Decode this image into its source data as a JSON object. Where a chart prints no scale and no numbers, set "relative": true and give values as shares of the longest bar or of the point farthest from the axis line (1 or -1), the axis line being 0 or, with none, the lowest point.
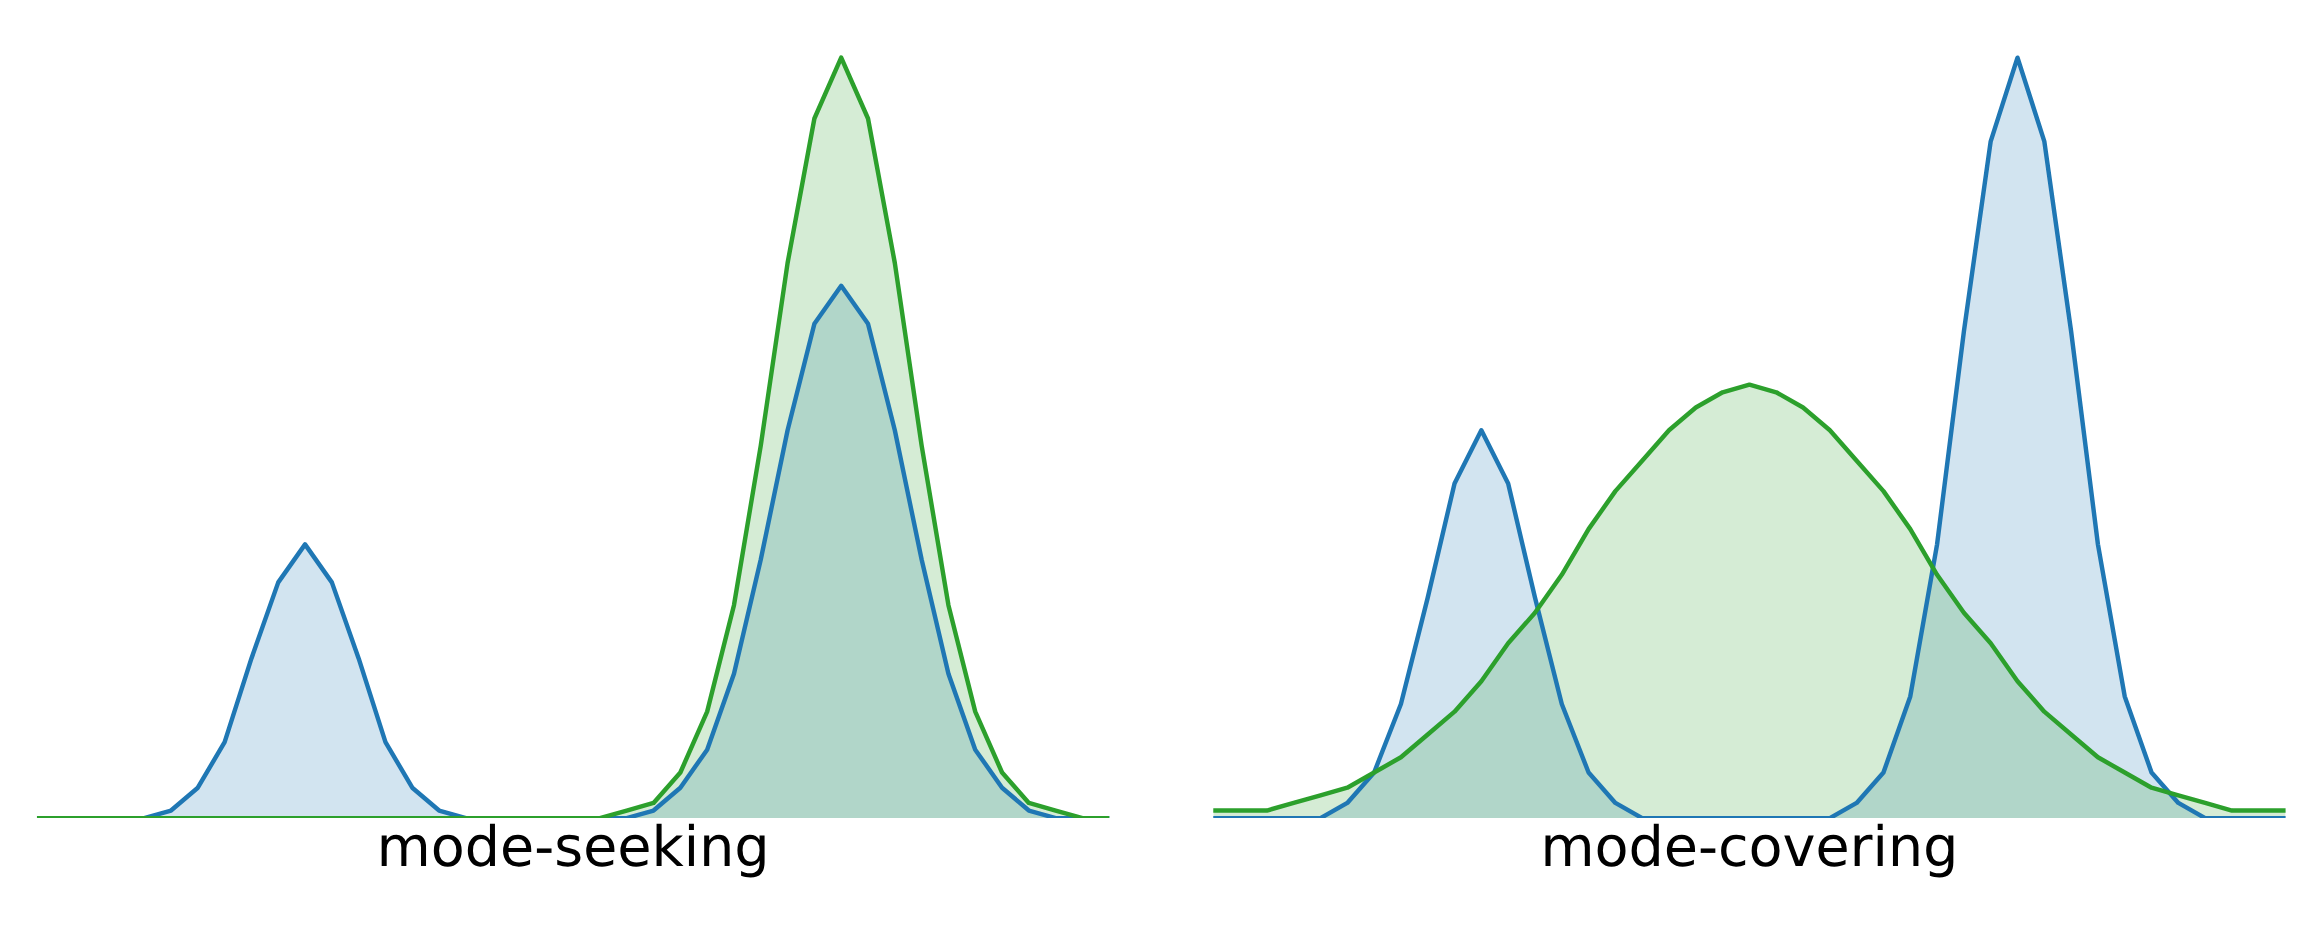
{
  "chart_data": [
    {
      "type": "area",
      "relative": true,
      "xlabel": "mode-seeking",
      "tick_labels": false,
      "grid": false,
      "legend": false,
      "categories": [
        null,
        null,
        null,
        null,
        null,
        null,
        null,
        null,
        null,
        null,
        null,
        null,
        null,
        null,
        null,
        null,
        null,
        null,
        null,
        null,
        null,
        null,
        null,
        null,
        null,
        null,
        null,
        null,
        null,
        null,
        null,
        null,
        null,
        null,
        null,
        null,
        null,
        null,
        null,
        null,
        null
      ],
      "series": [
        {
          "color": "#1f77b4",
          "values": [
            0,
            0,
            0,
            0,
            0,
            0.01,
            0.04,
            0.1,
            0.21,
            0.31,
            0.36,
            0.31,
            0.21,
            0.1,
            0.04,
            0.01,
            0,
            0,
            0,
            0,
            0,
            0,
            0,
            0.01,
            0.04,
            0.09,
            0.19,
            0.34,
            0.51,
            0.65,
            0.7,
            0.65,
            0.51,
            0.34,
            0.19,
            0.09,
            0.04,
            0.01,
            0,
            0,
            0
          ]
        },
        {
          "color": "#2ca02c",
          "values": [
            0,
            0,
            0,
            0,
            0,
            0,
            0,
            0,
            0,
            0,
            0,
            0,
            0,
            0,
            0,
            0,
            0,
            0,
            0,
            0,
            0,
            0,
            0.01,
            0.02,
            0.06,
            0.14,
            0.28,
            0.49,
            0.73,
            0.92,
            1,
            0.92,
            0.73,
            0.49,
            0.28,
            0.14,
            0.06,
            0.02,
            0.01,
            0,
            0
          ]
        }
      ]
    },
    {
      "type": "area",
      "relative": true,
      "xlabel": "mode-covering",
      "tick_labels": false,
      "grid": false,
      "legend": false,
      "categories": [
        null,
        null,
        null,
        null,
        null,
        null,
        null,
        null,
        null,
        null,
        null,
        null,
        null,
        null,
        null,
        null,
        null,
        null,
        null,
        null,
        null,
        null,
        null,
        null,
        null,
        null,
        null,
        null,
        null,
        null,
        null,
        null,
        null,
        null,
        null,
        null,
        null,
        null,
        null,
        null,
        null
      ],
      "series": [
        {
          "color": "#1f77b4",
          "values": [
            0,
            0,
            0,
            0,
            0,
            0.02,
            0.06,
            0.15,
            0.29,
            0.44,
            0.51,
            0.44,
            0.29,
            0.15,
            0.06,
            0.02,
            0,
            0,
            0,
            0,
            0,
            0,
            0,
            0,
            0.02,
            0.06,
            0.16,
            0.36,
            0.64,
            0.89,
            1,
            0.89,
            0.64,
            0.36,
            0.16,
            0.06,
            0.02,
            0,
            0,
            0,
            0
          ]
        },
        {
          "color": "#2ca02c",
          "values": [
            0.01,
            0.01,
            0.01,
            0.02,
            0.03,
            0.04,
            0.06,
            0.08,
            0.11,
            0.14,
            0.18,
            0.23,
            0.27,
            0.32,
            0.38,
            0.43,
            0.47,
            0.51,
            0.54,
            0.56,
            0.57,
            0.56,
            0.54,
            0.51,
            0.47,
            0.43,
            0.38,
            0.32,
            0.27,
            0.23,
            0.18,
            0.14,
            0.11,
            0.08,
            0.06,
            0.04,
            0.03,
            0.02,
            0.01,
            0.01,
            0.01
          ]
        }
      ]
    }
  ]
}
